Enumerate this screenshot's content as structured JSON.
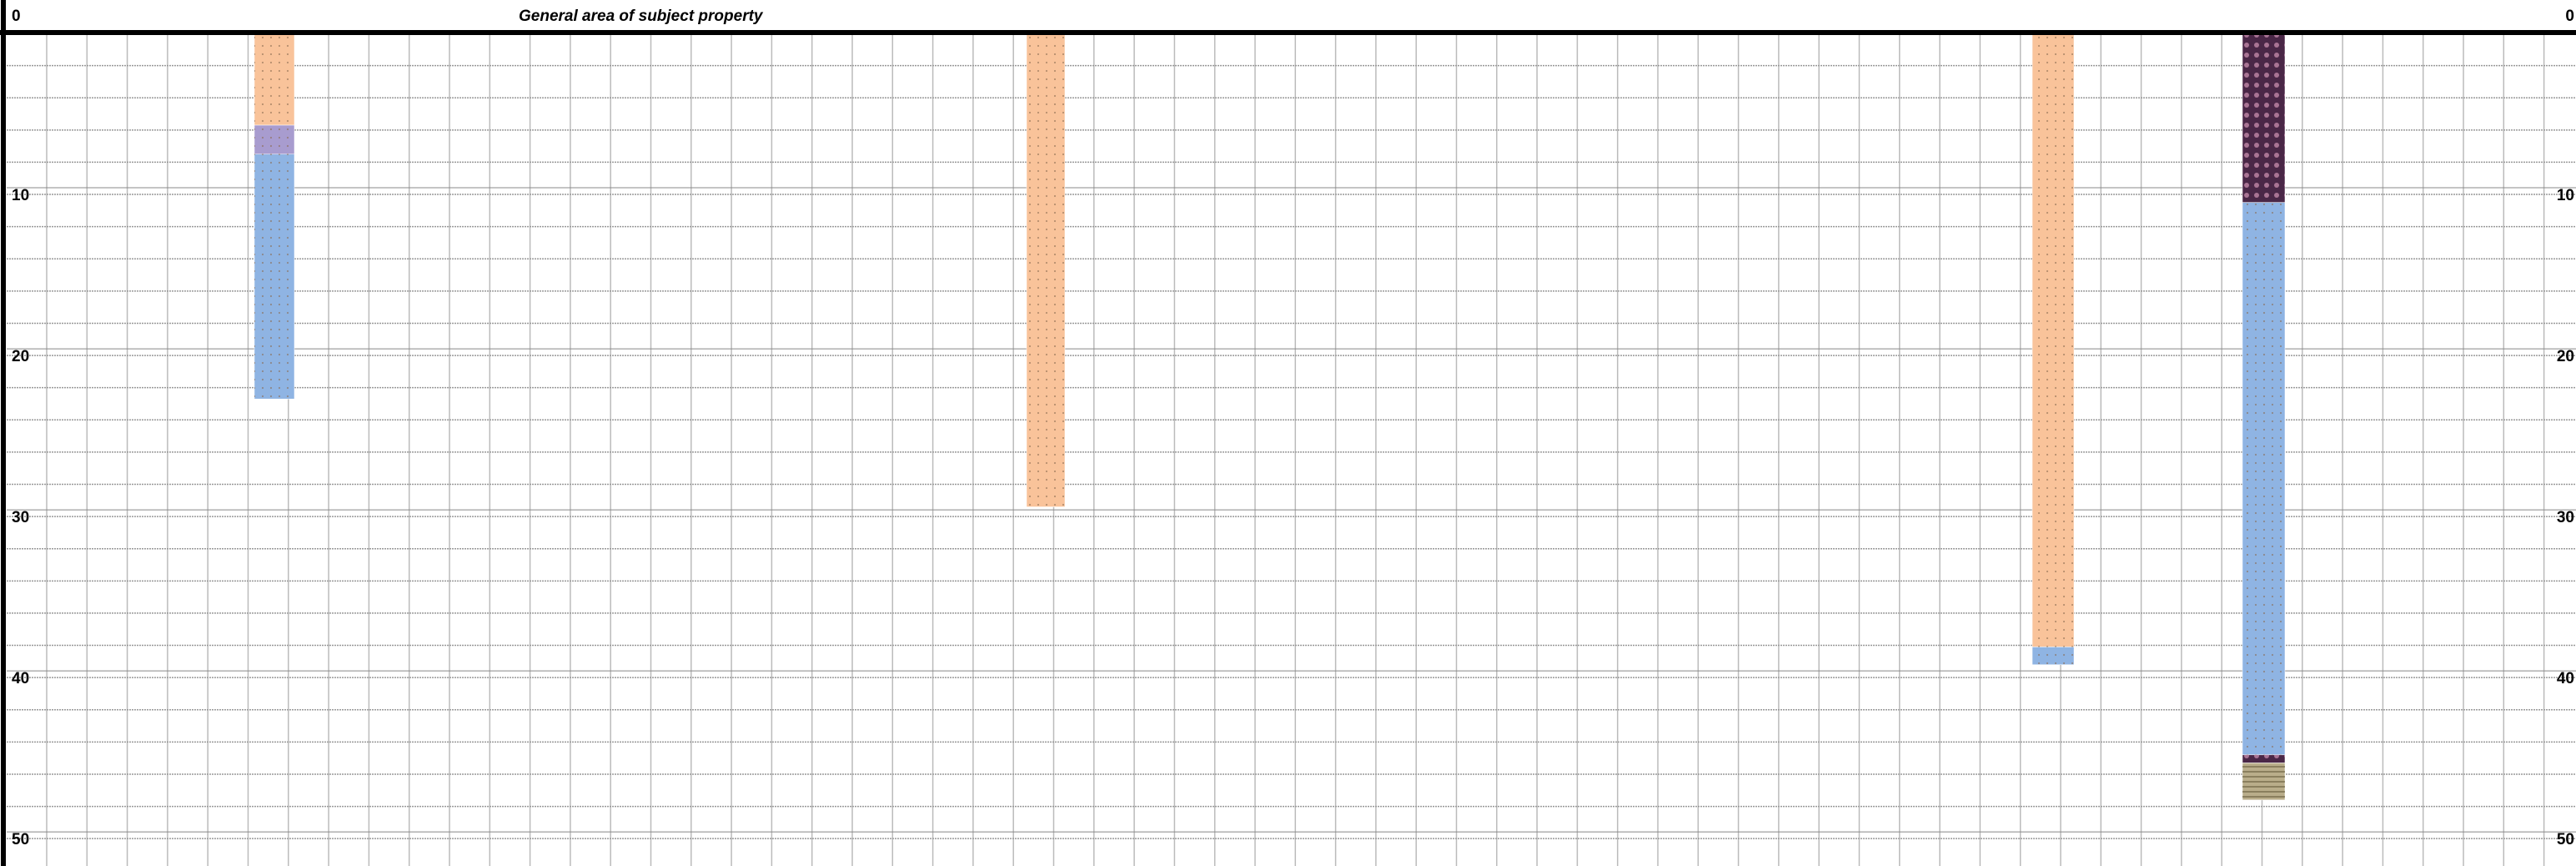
{
  "chart_data": {
    "type": "borehole",
    "title": "General area of subject property",
    "ylim": [
      0,
      51.7
    ],
    "yticks": [
      0,
      10,
      20,
      30,
      40,
      50
    ],
    "yminor": [
      2,
      4,
      6,
      8,
      10,
      12,
      14,
      16,
      18,
      20,
      22,
      24,
      26,
      28,
      30,
      32,
      34,
      36,
      38,
      40,
      42,
      44,
      46,
      48,
      50
    ],
    "grid": true,
    "boreholes": [
      {
        "layers": [
          {
            "from": 0,
            "to": 5.7,
            "color": "#f9c39a"
          },
          {
            "from": 5.7,
            "to": 7.5,
            "color": "#a89ccf"
          },
          {
            "from": 7.5,
            "to": 22.7,
            "color": "#8fb4e3"
          }
        ]
      },
      {
        "layers": [
          {
            "from": 0,
            "to": 29.4,
            "color": "#f9c39a"
          }
        ]
      },
      {
        "layers": [
          {
            "from": 0,
            "to": 38.1,
            "color": "#f9c39a"
          },
          {
            "from": 38.1,
            "to": 39.2,
            "color": "#8fb4e3"
          }
        ]
      },
      {
        "layers": [
          {
            "from": 0,
            "to": 10.5,
            "color": "#4a2747"
          },
          {
            "from": 10.5,
            "to": 44.8,
            "color": "#8fb4e3"
          },
          {
            "from": 44.8,
            "to": 45.3,
            "color": "#4a2747"
          },
          {
            "from": 45.3,
            "to": 47.6,
            "color": "#b9ad8a"
          }
        ]
      }
    ]
  }
}
